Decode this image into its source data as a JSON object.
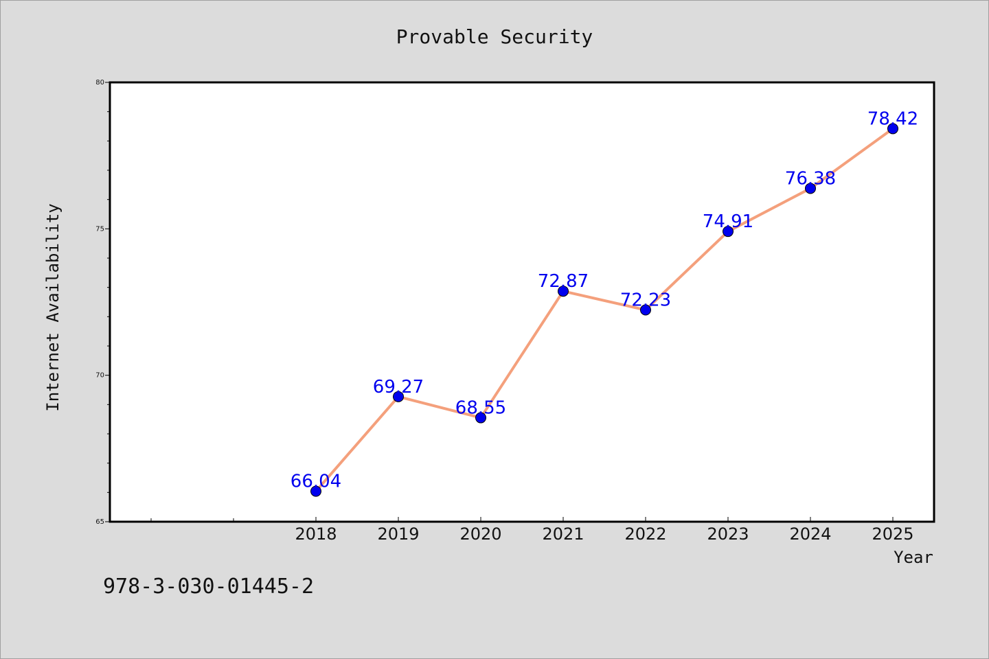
{
  "chart_data": {
    "type": "line",
    "title": "Provable Security",
    "xlabel": "Year",
    "ylabel": "Internet Availability",
    "x": [
      "2018",
      "2019",
      "2020",
      "2021",
      "2022",
      "2023",
      "2024",
      "2025"
    ],
    "series": [
      {
        "values": [
          66.04,
          69.27,
          68.55,
          72.87,
          72.23,
          74.91,
          76.38,
          78.42
        ],
        "line_color": "#f4a07c",
        "marker_color": "#0000ee"
      }
    ],
    "data_label_color": "#0000ee",
    "ylim": [
      65,
      80
    ],
    "yticks": [
      "65",
      "70",
      "75",
      "80"
    ],
    "grid": false,
    "legend": "none"
  },
  "footnote": "978-3-030-01445-2"
}
